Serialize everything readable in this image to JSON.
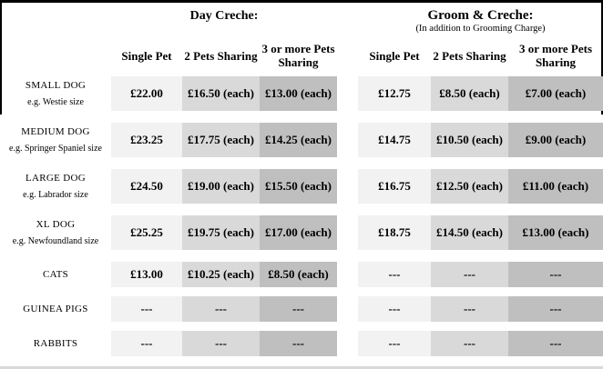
{
  "groups": {
    "day": {
      "title": "Day Creche:"
    },
    "groom": {
      "title": "Groom & Creche:",
      "subtitle": "(In addition to Grooming Charge)"
    }
  },
  "columns": {
    "day": [
      "Single Pet",
      "2 Pets Sharing",
      "3 or more Pets Sharing"
    ],
    "groom": [
      "Single Pet",
      "2 Pets Sharing",
      "3 or more Pets Sharing"
    ]
  },
  "rows": [
    {
      "label": "SMALL DOG",
      "sublabel": "e.g. Westie size",
      "values": [
        "£22.00",
        "£16.50 (each)",
        "£13.00 (each)",
        "£12.75",
        "£8.50 (each)",
        "£7.00 (each)"
      ]
    },
    {
      "label": "MEDIUM DOG",
      "sublabel": "e.g. Springer Spaniel size",
      "values": [
        "£23.25",
        "£17.75 (each)",
        "£14.25 (each)",
        "£14.75",
        "£10.50 (each)",
        "£9.00 (each)"
      ]
    },
    {
      "label": "LARGE DOG",
      "sublabel": "e.g. Labrador size",
      "values": [
        "£24.50",
        "£19.00 (each)",
        "£15.50 (each)",
        "£16.75",
        "£12.50 (each)",
        "£11.00 (each)"
      ]
    },
    {
      "label": "XL DOG",
      "sublabel": "e.g. Newfoundland size",
      "values": [
        "£25.25",
        "£19.75 (each)",
        "£17.00 (each)",
        "£18.75",
        "£14.50 (each)",
        "£13.00 (each)"
      ]
    },
    {
      "label": "CATS",
      "sublabel": "",
      "values": [
        "£13.00",
        "£10.25 (each)",
        "£8.50 (each)",
        "---",
        "---",
        "---"
      ]
    },
    {
      "label": "GUINEA PIGS",
      "sublabel": "",
      "values": [
        "---",
        "---",
        "---",
        "---",
        "---",
        "---"
      ]
    },
    {
      "label": "RABBITS",
      "sublabel": "",
      "values": [
        "---",
        "---",
        "---",
        "---",
        "---",
        "---"
      ]
    }
  ],
  "colors": {
    "shade_single_pet": "#f2f2f2",
    "shade_two_pets": "#d9d9d9",
    "shade_three_plus_pets": "#bfbfbf",
    "table_border": "#000000",
    "text": "#000000"
  }
}
